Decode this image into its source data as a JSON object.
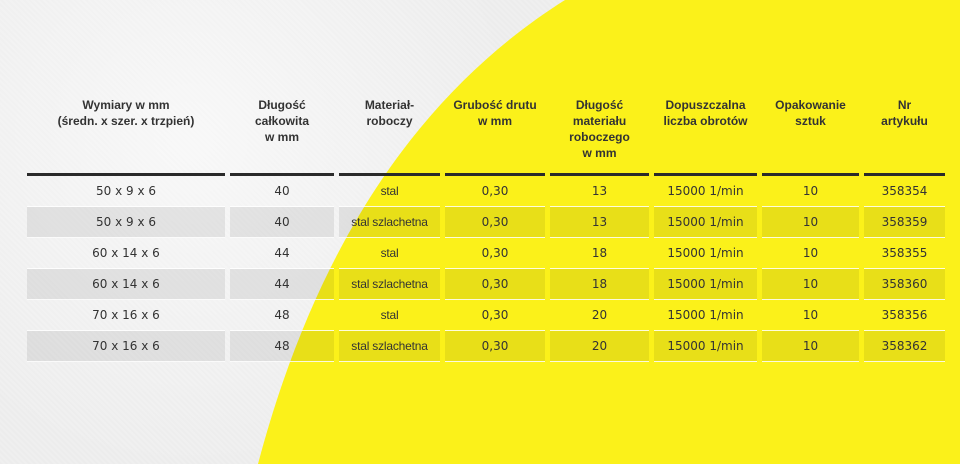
{
  "table": {
    "headers": [
      [
        "Wymiary w mm",
        "(średn. x szer. x trzpień)"
      ],
      [
        "Długość",
        "całkowita",
        "w mm"
      ],
      [
        "Materiał-",
        "roboczy"
      ],
      [
        "Grubość drutu",
        "w mm"
      ],
      [
        "Długość",
        "materiału",
        "roboczego",
        "w mm"
      ],
      [
        "Dopuszczalna",
        "liczba obrotów"
      ],
      [
        "Opakowanie",
        "sztuk"
      ],
      [
        "Nr",
        "artykułu"
      ]
    ],
    "rows": [
      [
        "50 x 9 x 6",
        "40",
        "stal",
        "0,30",
        "13",
        "15000 1/min",
        "10",
        "358354"
      ],
      [
        "50 x 9 x 6",
        "40",
        "stal szlachetna",
        "0,30",
        "13",
        "15000 1/min",
        "10",
        "358359"
      ],
      [
        "60 x 14 x 6",
        "44",
        "stal",
        "0,30",
        "18",
        "15000 1/min",
        "10",
        "358355"
      ],
      [
        "60 x 14 x 6",
        "44",
        "stal szlachetna",
        "0,30",
        "18",
        "15000 1/min",
        "10",
        "358360"
      ],
      [
        "70 x 16 x 6",
        "48",
        "stal",
        "0,30",
        "20",
        "15000 1/min",
        "10",
        "358356"
      ],
      [
        "70 x 16 x 6",
        "48",
        "stal szlachetna",
        "0,30",
        "20",
        "15000 1/min",
        "10",
        "358362"
      ]
    ]
  },
  "colors": {
    "background": "#efefef",
    "accent_yellow": "#fbf11a",
    "rule": "#2a2a2a",
    "text": "#333333"
  }
}
